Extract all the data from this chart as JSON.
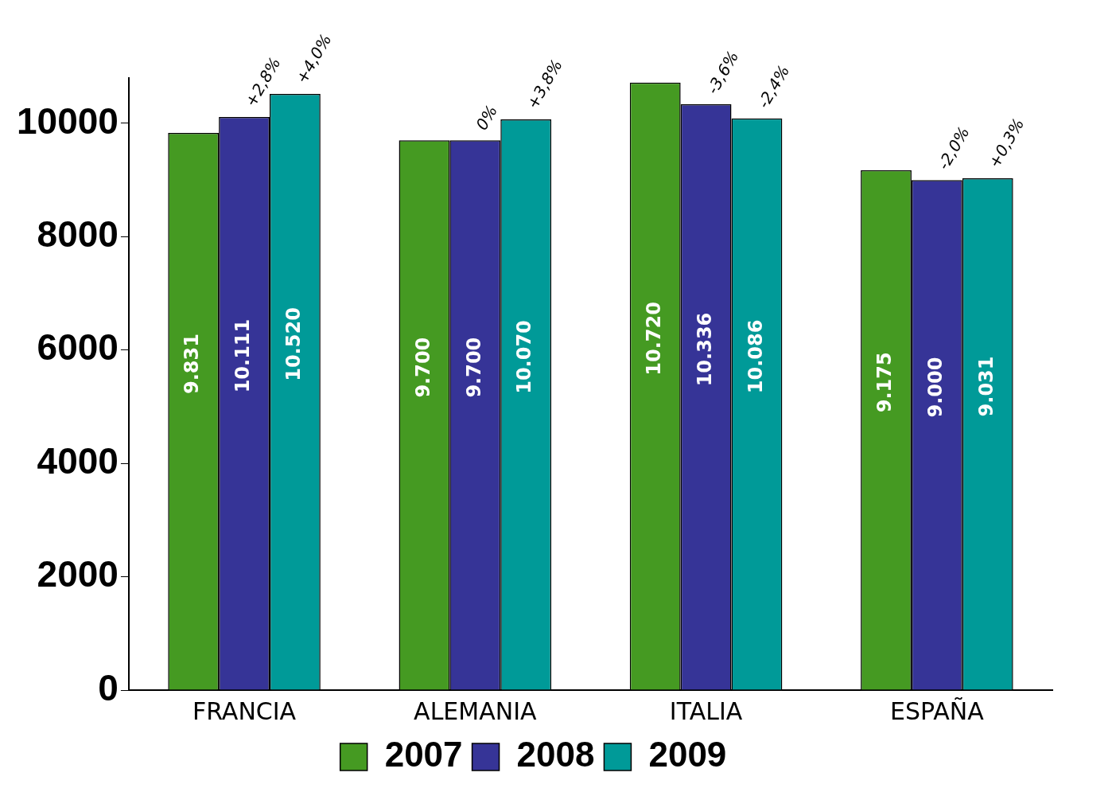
{
  "chart_data": {
    "type": "bar",
    "categories": [
      "FRANCIA",
      "ALEMANIA",
      "ITALIA",
      "ESPAÑA"
    ],
    "series": [
      {
        "name": "2007",
        "color": "#459a22",
        "values": [
          9831,
          9700,
          10720,
          9175
        ],
        "value_labels": [
          "9.831",
          "9.700",
          "10.720",
          "9.175"
        ]
      },
      {
        "name": "2008",
        "color": "#363497",
        "values": [
          10111,
          9700,
          10336,
          9000
        ],
        "value_labels": [
          "10.111",
          "9.700",
          "10.336",
          "9.000"
        ]
      },
      {
        "name": "2009",
        "color": "#009a98",
        "values": [
          10520,
          10070,
          10086,
          9031
        ],
        "value_labels": [
          "10.520",
          "10.070",
          "10.086",
          "9.031"
        ]
      }
    ],
    "annotations": [
      "+2,8%",
      "+4,0%",
      "0%",
      "+3,8%",
      "-3,6%",
      "-2,4%",
      "-2,0%",
      "+0,3%"
    ],
    "ylim": [
      0,
      10800
    ],
    "yticks": [
      0,
      2000,
      4000,
      6000,
      8000,
      10000
    ],
    "grid": false,
    "legend": "bottom"
  }
}
